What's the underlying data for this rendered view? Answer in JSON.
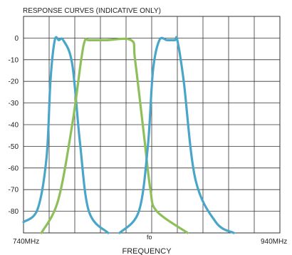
{
  "chart_data": {
    "type": "line",
    "title": "RESPONSE CURVES (INDICATIVE  ONLY)",
    "xlabel": "FREQUENCY",
    "ylabel": "",
    "x_tick_labels": [
      "740MHz",
      "fo",
      "940MHz"
    ],
    "xlim": [
      0,
      10
    ],
    "ylim": [
      -90,
      10
    ],
    "yticks": [
      0,
      -10,
      -20,
      -30,
      -40,
      -50,
      -60,
      -70,
      -80
    ],
    "grid": true,
    "legend": "none",
    "colors": {
      "blue": "#4aa6c8",
      "green": "#8fbf5a",
      "grid": "#333333"
    },
    "series": [
      {
        "color": "blue",
        "x": [
          0.0,
          0.55,
          0.9,
          1.05,
          1.22,
          1.38,
          1.55,
          1.9,
          2.2,
          2.55,
          3.3
        ],
        "y": [
          -85,
          -79,
          -55,
          -20,
          -1,
          -1,
          -1,
          -12,
          -48,
          -80,
          -90
        ]
      },
      {
        "color": "green",
        "x": [
          0.7,
          1.35,
          1.9,
          2.25,
          2.4,
          2.55,
          3.2,
          4.2,
          4.35,
          4.7,
          4.95,
          5.2,
          6.4
        ],
        "y": [
          -90,
          -75,
          -40,
          -10,
          -1,
          -1,
          -1,
          -1,
          -10,
          -45,
          -70,
          -80,
          -90
        ]
      },
      {
        "color": "blue",
        "x": [
          3.75,
          4.5,
          4.85,
          5.05,
          5.3,
          5.6,
          5.9,
          6.0,
          6.25,
          6.7,
          7.5,
          8.2
        ],
        "y": [
          -90,
          -80,
          -50,
          -15,
          -1,
          -1,
          -1,
          -1,
          -20,
          -65,
          -85,
          -90
        ]
      }
    ]
  }
}
